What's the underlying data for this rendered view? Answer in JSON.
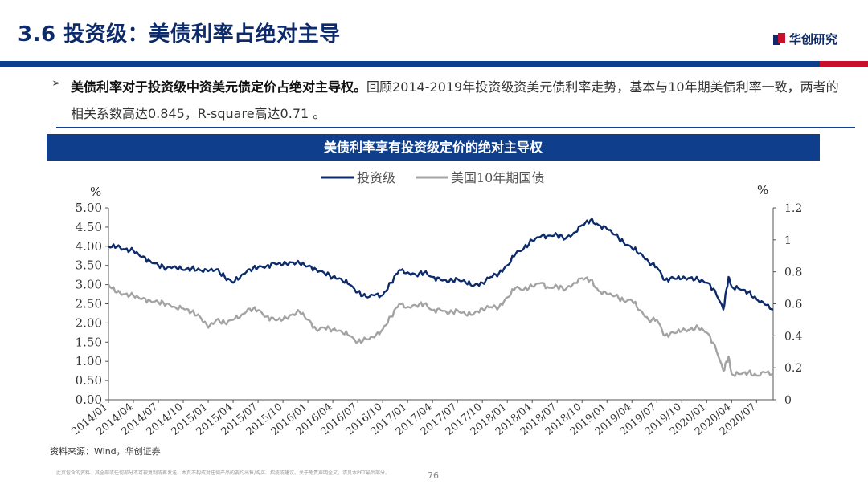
{
  "header": {
    "title": "3.6 投资级：美债利率占绝对主导",
    "logo_text": "华创研究"
  },
  "summary": {
    "bullet": "➢",
    "bold": "美债利率对于投资级中资美元债定价占绝对主导权。",
    "text": "回顾2014-2019年投资级资美元债利率走势，基本与10年期美债利率一致，两者的相关系数高达0.845，R-square高达0.71 。"
  },
  "chart_banner": "美债利率享有投资级定价的绝对主导权",
  "footer": {
    "source": "资料来源：Wind，华创证券",
    "disclaimer": "此页包含的资料、其全部或任何部分不可被复制或再发送。本页不构成对任何产品的要约出售/购买、招揽或建议。关于免责声明全文，请见本PPT最后部分。",
    "page_number": "76"
  },
  "colors": {
    "navy": "#0d2b6b",
    "grey": "#a3a3a3",
    "banner": "#0f3f8c",
    "accent_red": "#c8102e"
  },
  "chart_data": {
    "type": "line",
    "left_axis_unit": "%",
    "right_axis_unit": "%",
    "ylim_left": [
      0,
      5
    ],
    "ylim_right": [
      0,
      1.2
    ],
    "yticks_left": [
      "0.00",
      "0.50",
      "1.00",
      "1.50",
      "2.00",
      "2.50",
      "3.00",
      "3.50",
      "4.00",
      "4.50",
      "5.00"
    ],
    "yticks_right": [
      "0",
      "0.2",
      "0.4",
      "0.6",
      "0.8",
      "1",
      "1.2"
    ],
    "x_range": [
      "2014/01",
      "2020/09"
    ],
    "xticks": [
      "2014/01",
      "2014/04",
      "2014/07",
      "2014/10",
      "2015/01",
      "2015/04",
      "2015/07",
      "2015/10",
      "2016/01",
      "2016/04",
      "2016/07",
      "2016/10",
      "2017/01",
      "2017/04",
      "2017/07",
      "2017/10",
      "2018/01",
      "2018/04",
      "2018/07",
      "2018/10",
      "2019/01",
      "2019/04",
      "2019/07",
      "2019/10",
      "2020/01",
      "2020/04",
      "2020/07"
    ],
    "grid": false,
    "legend_position": "top-center",
    "series": [
      {
        "name": "投资级",
        "axis": "left",
        "color": "#0d2b6b",
        "points": [
          [
            "2014-01",
            4.0
          ],
          [
            "2014-02",
            3.98
          ],
          [
            "2014-03",
            3.92
          ],
          [
            "2014-04",
            3.88
          ],
          [
            "2014-05",
            3.72
          ],
          [
            "2014-06",
            3.62
          ],
          [
            "2014-07",
            3.5
          ],
          [
            "2014-08",
            3.43
          ],
          [
            "2014-09",
            3.48
          ],
          [
            "2014-10",
            3.38
          ],
          [
            "2014-11",
            3.42
          ],
          [
            "2014-12",
            3.38
          ],
          [
            "2015-01",
            3.35
          ],
          [
            "2015-02",
            3.4
          ],
          [
            "2015-03",
            3.2
          ],
          [
            "2015-04",
            3.05
          ],
          [
            "2015-05",
            3.25
          ],
          [
            "2015-06",
            3.4
          ],
          [
            "2015-07",
            3.45
          ],
          [
            "2015-08",
            3.48
          ],
          [
            "2015-09",
            3.55
          ],
          [
            "2015-10",
            3.52
          ],
          [
            "2015-11",
            3.58
          ],
          [
            "2015-12",
            3.55
          ],
          [
            "2016-01",
            3.48
          ],
          [
            "2016-02",
            3.4
          ],
          [
            "2016-03",
            3.3
          ],
          [
            "2016-04",
            3.2
          ],
          [
            "2016-05",
            3.15
          ],
          [
            "2016-06",
            3.0
          ],
          [
            "2016-07",
            2.8
          ],
          [
            "2016-08",
            2.68
          ],
          [
            "2016-09",
            2.72
          ],
          [
            "2016-10",
            2.72
          ],
          [
            "2016-11",
            3.05
          ],
          [
            "2016-12",
            3.38
          ],
          [
            "2017-01",
            3.32
          ],
          [
            "2017-02",
            3.25
          ],
          [
            "2017-03",
            3.32
          ],
          [
            "2017-04",
            3.2
          ],
          [
            "2017-05",
            3.12
          ],
          [
            "2017-06",
            3.08
          ],
          [
            "2017-07",
            3.15
          ],
          [
            "2017-08",
            3.05
          ],
          [
            "2017-09",
            2.98
          ],
          [
            "2017-10",
            3.05
          ],
          [
            "2017-11",
            3.2
          ],
          [
            "2017-12",
            3.3
          ],
          [
            "2018-01",
            3.5
          ],
          [
            "2018-02",
            3.8
          ],
          [
            "2018-03",
            3.95
          ],
          [
            "2018-04",
            4.15
          ],
          [
            "2018-05",
            4.25
          ],
          [
            "2018-06",
            4.28
          ],
          [
            "2018-07",
            4.3
          ],
          [
            "2018-08",
            4.2
          ],
          [
            "2018-09",
            4.35
          ],
          [
            "2018-10",
            4.55
          ],
          [
            "2018-11",
            4.68
          ],
          [
            "2018-12",
            4.55
          ],
          [
            "2019-01",
            4.45
          ],
          [
            "2019-02",
            4.3
          ],
          [
            "2019-03",
            4.1
          ],
          [
            "2019-04",
            3.95
          ],
          [
            "2019-05",
            3.82
          ],
          [
            "2019-06",
            3.6
          ],
          [
            "2019-07",
            3.45
          ],
          [
            "2019-08",
            3.12
          ],
          [
            "2019-09",
            3.18
          ],
          [
            "2019-10",
            3.15
          ],
          [
            "2019-11",
            3.18
          ],
          [
            "2019-12",
            3.12
          ],
          [
            "2020-01",
            3.05
          ],
          [
            "2020-02",
            2.85
          ],
          [
            "2020-03",
            2.35
          ],
          [
            "2020-03-20",
            3.2
          ],
          [
            "2020-04",
            2.95
          ],
          [
            "2020-05",
            2.88
          ],
          [
            "2020-06",
            2.8
          ],
          [
            "2020-07",
            2.62
          ],
          [
            "2020-08",
            2.48
          ],
          [
            "2020-09",
            2.35
          ]
        ]
      },
      {
        "name": "美国10年期国债",
        "axis": "right",
        "color": "#a3a3a3",
        "points": [
          [
            "2014-01",
            0.72
          ],
          [
            "2014-02",
            0.67
          ],
          [
            "2014-03",
            0.66
          ],
          [
            "2014-04",
            0.65
          ],
          [
            "2014-05",
            0.63
          ],
          [
            "2014-06",
            0.62
          ],
          [
            "2014-07",
            0.61
          ],
          [
            "2014-08",
            0.6
          ],
          [
            "2014-09",
            0.58
          ],
          [
            "2014-10",
            0.57
          ],
          [
            "2014-11",
            0.55
          ],
          [
            "2014-12",
            0.52
          ],
          [
            "2015-01",
            0.45
          ],
          [
            "2015-02",
            0.5
          ],
          [
            "2015-03",
            0.48
          ],
          [
            "2015-04",
            0.5
          ],
          [
            "2015-05",
            0.53
          ],
          [
            "2015-06",
            0.57
          ],
          [
            "2015-07",
            0.56
          ],
          [
            "2015-08",
            0.52
          ],
          [
            "2015-09",
            0.5
          ],
          [
            "2015-10",
            0.5
          ],
          [
            "2015-11",
            0.53
          ],
          [
            "2015-12",
            0.55
          ],
          [
            "2016-01",
            0.5
          ],
          [
            "2016-02",
            0.44
          ],
          [
            "2016-03",
            0.45
          ],
          [
            "2016-04",
            0.44
          ],
          [
            "2016-05",
            0.43
          ],
          [
            "2016-06",
            0.4
          ],
          [
            "2016-07",
            0.36
          ],
          [
            "2016-08",
            0.38
          ],
          [
            "2016-09",
            0.39
          ],
          [
            "2016-10",
            0.44
          ],
          [
            "2016-11",
            0.52
          ],
          [
            "2016-12",
            0.6
          ],
          [
            "2017-01",
            0.58
          ],
          [
            "2017-02",
            0.59
          ],
          [
            "2017-03",
            0.6
          ],
          [
            "2017-04",
            0.56
          ],
          [
            "2017-05",
            0.56
          ],
          [
            "2017-06",
            0.54
          ],
          [
            "2017-07",
            0.56
          ],
          [
            "2017-08",
            0.53
          ],
          [
            "2017-09",
            0.54
          ],
          [
            "2017-10",
            0.57
          ],
          [
            "2017-11",
            0.58
          ],
          [
            "2017-12",
            0.58
          ],
          [
            "2018-01",
            0.64
          ],
          [
            "2018-02",
            0.7
          ],
          [
            "2018-03",
            0.69
          ],
          [
            "2018-04",
            0.71
          ],
          [
            "2018-05",
            0.73
          ],
          [
            "2018-06",
            0.7
          ],
          [
            "2018-07",
            0.71
          ],
          [
            "2018-08",
            0.69
          ],
          [
            "2018-09",
            0.73
          ],
          [
            "2018-10",
            0.76
          ],
          [
            "2018-11",
            0.75
          ],
          [
            "2018-12",
            0.68
          ],
          [
            "2019-01",
            0.66
          ],
          [
            "2019-02",
            0.65
          ],
          [
            "2019-03",
            0.62
          ],
          [
            "2019-04",
            0.62
          ],
          [
            "2019-05",
            0.56
          ],
          [
            "2019-06",
            0.5
          ],
          [
            "2019-07",
            0.5
          ],
          [
            "2019-08",
            0.4
          ],
          [
            "2019-09",
            0.42
          ],
          [
            "2019-10",
            0.43
          ],
          [
            "2019-11",
            0.44
          ],
          [
            "2019-12",
            0.45
          ],
          [
            "2020-01",
            0.42
          ],
          [
            "2020-02",
            0.34
          ],
          [
            "2020-03",
            0.18
          ],
          [
            "2020-03-20",
            0.27
          ],
          [
            "2020-04",
            0.16
          ],
          [
            "2020-05",
            0.16
          ],
          [
            "2020-06",
            0.17
          ],
          [
            "2020-07",
            0.15
          ],
          [
            "2020-08",
            0.17
          ],
          [
            "2020-09",
            0.16
          ]
        ]
      }
    ]
  }
}
